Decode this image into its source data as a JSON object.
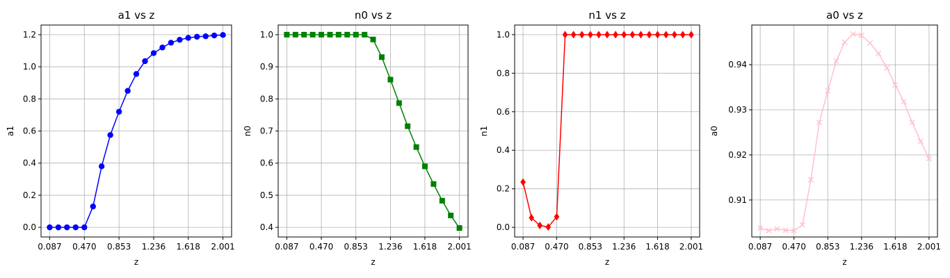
{
  "chart_data": [
    {
      "type": "line",
      "title": "a1 vs z",
      "xlabel": "z",
      "ylabel": "a1",
      "xlim": [
        0.087,
        2.001
      ],
      "ylim": [
        -0.06,
        1.26
      ],
      "xticks": [
        0.087,
        0.47,
        0.853,
        1.236,
        1.618,
        2.001
      ],
      "xtick_labels": [
        "0.087",
        "0.470",
        "0.853",
        "1.236",
        "1.618",
        "2.001"
      ],
      "yticks": [
        0.0,
        0.2,
        0.4,
        0.6,
        0.8,
        1.0,
        1.2
      ],
      "ytick_labels": [
        "0.0",
        "0.2",
        "0.4",
        "0.6",
        "0.8",
        "1.0",
        "1.2"
      ],
      "grid": true,
      "color": "#0000ff",
      "marker": "circle",
      "x": [
        0.087,
        0.183,
        0.278,
        0.374,
        0.47,
        0.566,
        0.661,
        0.757,
        0.853,
        0.949,
        1.044,
        1.14,
        1.236,
        1.332,
        1.427,
        1.523,
        1.618,
        1.714,
        1.81,
        1.905,
        2.001
      ],
      "values": [
        0.0,
        0.0,
        0.0,
        0.0,
        0.0,
        0.13,
        0.38,
        0.575,
        0.72,
        0.85,
        0.955,
        1.035,
        1.085,
        1.12,
        1.15,
        1.168,
        1.18,
        1.187,
        1.19,
        1.195,
        1.198
      ]
    },
    {
      "type": "line",
      "title": "n0 vs z",
      "xlabel": "z",
      "ylabel": "n0",
      "xlim": [
        0.087,
        2.001
      ],
      "ylim": [
        0.37,
        1.03
      ],
      "xticks": [
        0.087,
        0.47,
        0.853,
        1.236,
        1.618,
        2.001
      ],
      "xtick_labels": [
        "0.087",
        "0.470",
        "0.853",
        "1.236",
        "1.618",
        "2.001"
      ],
      "yticks": [
        0.4,
        0.5,
        0.6,
        0.7,
        0.8,
        0.9,
        1.0
      ],
      "ytick_labels": [
        "0.4",
        "0.5",
        "0.6",
        "0.7",
        "0.8",
        "0.9",
        "1.0"
      ],
      "grid": true,
      "color": "#008000",
      "marker": "square",
      "x": [
        0.087,
        0.183,
        0.278,
        0.374,
        0.47,
        0.566,
        0.661,
        0.757,
        0.853,
        0.949,
        1.044,
        1.14,
        1.236,
        1.332,
        1.427,
        1.523,
        1.618,
        1.714,
        1.81,
        1.905,
        2.001
      ],
      "values": [
        1.0,
        1.0,
        1.0,
        1.0,
        1.0,
        1.0,
        1.0,
        1.0,
        1.0,
        1.0,
        0.985,
        0.93,
        0.86,
        0.787,
        0.715,
        0.65,
        0.59,
        0.535,
        0.483,
        0.437,
        0.398
      ]
    },
    {
      "type": "line",
      "title": "n1 vs z",
      "xlabel": "z",
      "ylabel": "n1",
      "xlim": [
        0.087,
        2.001
      ],
      "ylim": [
        -0.05,
        1.05
      ],
      "xticks": [
        0.087,
        0.47,
        0.853,
        1.236,
        1.618,
        2.001
      ],
      "xtick_labels": [
        "0.087",
        "0.470",
        "0.853",
        "1.236",
        "1.618",
        "2.001"
      ],
      "yticks": [
        0.0,
        0.2,
        0.4,
        0.6,
        0.8,
        1.0
      ],
      "ytick_labels": [
        "0.0",
        "0.2",
        "0.4",
        "0.6",
        "0.8",
        "1.0"
      ],
      "grid": true,
      "color": "#ff0000",
      "marker": "diamond",
      "x": [
        0.087,
        0.183,
        0.278,
        0.374,
        0.47,
        0.566,
        0.661,
        0.757,
        0.853,
        0.949,
        1.044,
        1.14,
        1.236,
        1.332,
        1.427,
        1.523,
        1.618,
        1.714,
        1.81,
        1.905,
        2.001
      ],
      "values": [
        0.235,
        0.05,
        0.01,
        0.002,
        0.055,
        1.0,
        1.0,
        1.0,
        1.0,
        1.0,
        1.0,
        1.0,
        1.0,
        1.0,
        1.0,
        1.0,
        1.0,
        1.0,
        1.0,
        1.0,
        1.0
      ]
    },
    {
      "type": "line",
      "title": "a0 vs z",
      "xlabel": "z",
      "ylabel": "a0",
      "xlim": [
        0.087,
        2.001
      ],
      "ylim": [
        0.9018,
        0.9488
      ],
      "xticks": [
        0.087,
        0.47,
        0.853,
        1.236,
        1.618,
        2.001
      ],
      "xtick_labels": [
        "0.087",
        "0.470",
        "0.853",
        "1.236",
        "1.618",
        "2.001"
      ],
      "yticks": [
        0.91,
        0.92,
        0.93,
        0.94
      ],
      "ytick_labels": [
        "0.91",
        "0.92",
        "0.93",
        "0.94"
      ],
      "grid": true,
      "color": "#ffc0cb",
      "marker": "x",
      "x": [
        0.087,
        0.183,
        0.278,
        0.374,
        0.47,
        0.566,
        0.661,
        0.757,
        0.853,
        0.949,
        1.044,
        1.14,
        1.236,
        1.332,
        1.427,
        1.523,
        1.618,
        1.714,
        1.81,
        1.905,
        2.001
      ],
      "values": [
        0.9038,
        0.9032,
        0.9036,
        0.9033,
        0.9032,
        0.9045,
        0.9145,
        0.9272,
        0.9342,
        0.9408,
        0.945,
        0.9468,
        0.9465,
        0.9448,
        0.9425,
        0.9393,
        0.9355,
        0.9318,
        0.9272,
        0.923,
        0.9192
      ]
    }
  ]
}
